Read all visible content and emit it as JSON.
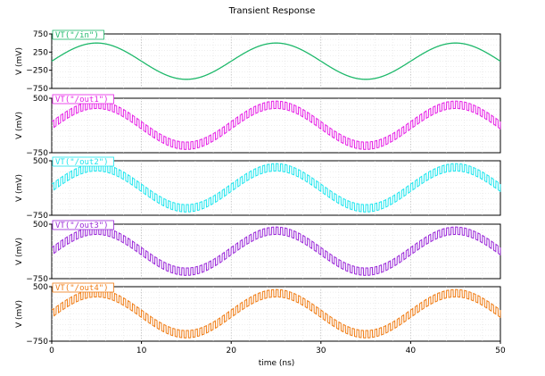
{
  "chart_data": {
    "type": "line",
    "title": "Transient Response",
    "xlabel": "time (ns)",
    "xlim": [
      0,
      50
    ],
    "x_ticks": [
      "0",
      "10",
      "20",
      "30",
      "40",
      "50"
    ],
    "grid": true,
    "legend_placement": "top-left",
    "panels": [
      {
        "series_name": "VT(\"/in\")",
        "color": "#1db86a",
        "ylabel": "V (mV)",
        "ylim": [
          -750,
          750
        ],
        "y_ticks": [
          "750",
          "250",
          "−250",
          "−750"
        ],
        "signal": {
          "kind": "sine",
          "amplitude_mV": 500,
          "offset_mV": 0,
          "period_ns": 20,
          "phase_deg": 0,
          "ripple": false
        }
      },
      {
        "series_name": "VT(\"/out1\")",
        "color": "#e620e6",
        "ylabel": "V (mV)",
        "ylim": [
          -750,
          500
        ],
        "y_ticks": [
          "500",
          "−750"
        ],
        "signal": {
          "kind": "sine",
          "amplitude_mV": 470,
          "offset_mV": -120,
          "period_ns": 20,
          "phase_deg": 0,
          "ripple": true,
          "ripple_period_ns": 0.5,
          "ripple_amplitude_mV": 85
        }
      },
      {
        "series_name": "VT(\"/out2\")",
        "color": "#1ee6ee",
        "ylabel": "V (mV)",
        "ylim": [
          -750,
          500
        ],
        "y_ticks": [
          "500",
          "−750"
        ],
        "signal": {
          "kind": "sine",
          "amplitude_mV": 470,
          "offset_mV": -120,
          "period_ns": 20,
          "phase_deg": 0,
          "ripple": true,
          "ripple_period_ns": 0.5,
          "ripple_amplitude_mV": 85
        }
      },
      {
        "series_name": "VT(\"/out3\")",
        "color": "#9a28d8",
        "ylabel": "V (mV)",
        "ylim": [
          -750,
          500
        ],
        "y_ticks": [
          "500",
          "−750"
        ],
        "signal": {
          "kind": "sine",
          "amplitude_mV": 470,
          "offset_mV": -120,
          "period_ns": 20,
          "phase_deg": 0,
          "ripple": true,
          "ripple_period_ns": 0.5,
          "ripple_amplitude_mV": 85
        }
      },
      {
        "series_name": "VT(\"/out4\")",
        "color": "#f07c14",
        "ylabel": "V (mV)",
        "ylim": [
          -750,
          500
        ],
        "y_ticks": [
          "500",
          "−750"
        ],
        "signal": {
          "kind": "sine",
          "amplitude_mV": 470,
          "offset_mV": -120,
          "period_ns": 20,
          "phase_deg": 0,
          "ripple": true,
          "ripple_period_ns": 0.5,
          "ripple_amplitude_mV": 85
        }
      }
    ]
  }
}
